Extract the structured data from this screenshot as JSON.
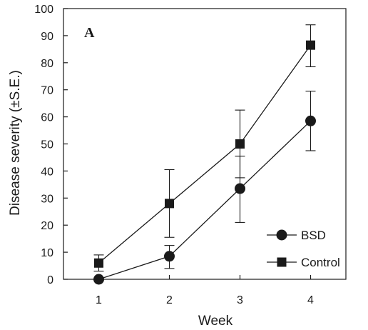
{
  "chart_data": {
    "type": "line",
    "panel_label": "A",
    "xlabel": "Week",
    "ylabel": "Disease severity (±S.E.)",
    "x": [
      1,
      2,
      3,
      4
    ],
    "x_ticks": [
      "1",
      "2",
      "3",
      "4"
    ],
    "xlim": [
      0.5,
      4.5
    ],
    "ylim": [
      0,
      100
    ],
    "y_ticks": [
      "0",
      "10",
      "20",
      "30",
      "40",
      "50",
      "60",
      "70",
      "80",
      "90",
      "100"
    ],
    "grid": false,
    "legend_position": "bottom-right",
    "series": [
      {
        "name": "BSD",
        "marker": "circle",
        "values": [
          0,
          8.5,
          33.5,
          58.5
        ],
        "err_low": [
          0,
          4,
          21,
          47.5
        ],
        "err_high": [
          0,
          12.5,
          45.5,
          69.5
        ]
      },
      {
        "name": "Control",
        "marker": "square",
        "values": [
          6,
          28,
          50,
          86.5
        ],
        "err_low": [
          3,
          15.5,
          37.5,
          78.5
        ],
        "err_high": [
          9,
          40.5,
          62.5,
          94
        ]
      }
    ],
    "colors": {
      "line": "#1a1a1a",
      "marker": "#1a1a1a"
    }
  }
}
